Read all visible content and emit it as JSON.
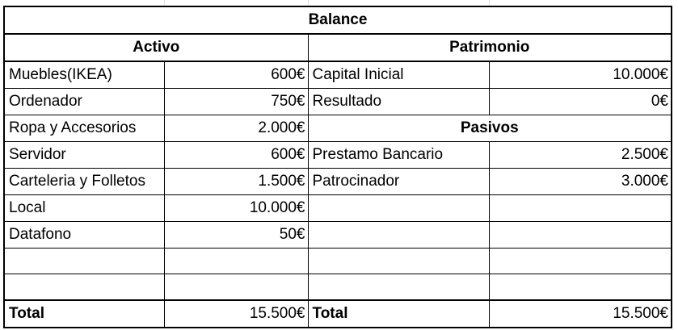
{
  "title": "Balance",
  "activo": {
    "heading": "Activo",
    "rows": [
      {
        "label": "Muebles(IKEA)",
        "value": "600€"
      },
      {
        "label": "Ordenador",
        "value": "750€"
      },
      {
        "label": "Ropa y Accesorios",
        "value": "2.000€"
      },
      {
        "label": "Servidor",
        "value": "600€"
      },
      {
        "label": "Carteleria y Folletos",
        "value": "1.500€"
      },
      {
        "label": "Local",
        "value": "10.000€"
      },
      {
        "label": "Datafono",
        "value": "50€"
      }
    ],
    "total_label": "Total",
    "total_value": "15.500€"
  },
  "patrimonio": {
    "heading": "Patrimonio",
    "rows": [
      {
        "label": "Capital Inicial",
        "value": "10.000€"
      },
      {
        "label": "Resultado",
        "value": "0€"
      }
    ]
  },
  "pasivos": {
    "heading": "Pasivos",
    "rows": [
      {
        "label": "Prestamo Bancario",
        "value": "2.500€"
      },
      {
        "label": "Patrocinador",
        "value": "3.000€"
      }
    ],
    "total_label": "Total",
    "total_value": "15.500€"
  }
}
